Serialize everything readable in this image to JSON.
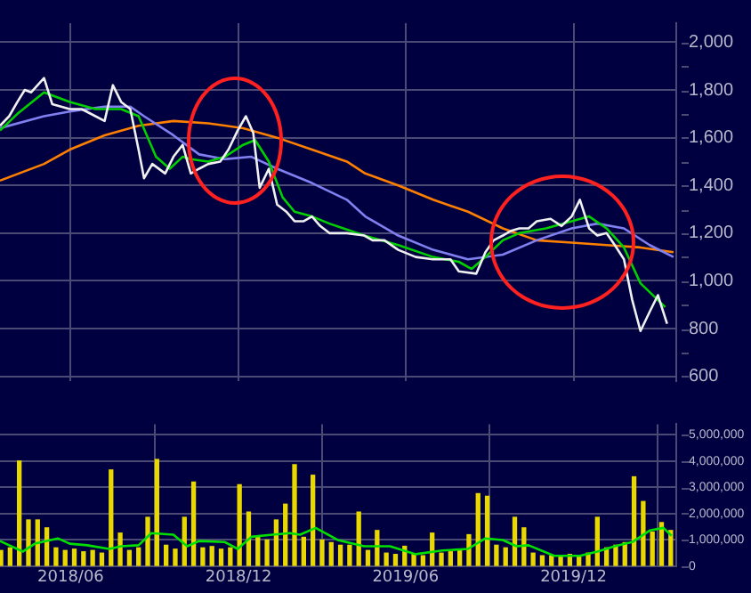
{
  "chart_data": [
    {
      "type": "line",
      "marker": "none",
      "line_style": "solid",
      "grid": true,
      "tick_labels": "y",
      "xlim": [
        "2018-03-16",
        "2020-03-22"
      ],
      "xticks": [
        {
          "value": "2018-06-01",
          "label": null
        },
        {
          "value": "2018-12-01",
          "label": null
        },
        {
          "value": "2019-06-01",
          "label": null
        },
        {
          "value": "2019-12-01",
          "label": null
        }
      ],
      "ylim": [
        580,
        2080
      ],
      "yticks": [
        {
          "value": 600,
          "label": "600"
        },
        {
          "value": 700,
          "label": null
        },
        {
          "value": 800,
          "label": "800"
        },
        {
          "value": 900,
          "label": null
        },
        {
          "value": 1000,
          "label": "1,000"
        },
        {
          "value": 1100,
          "label": null
        },
        {
          "value": 1200,
          "label": "1,200"
        },
        {
          "value": 1300,
          "label": null
        },
        {
          "value": 1400,
          "label": "1,400"
        },
        {
          "value": 1500,
          "label": null
        },
        {
          "value": 1600,
          "label": "1,600"
        },
        {
          "value": 1700,
          "label": null
        },
        {
          "value": 1800,
          "label": "1,800"
        },
        {
          "value": 1900,
          "label": null
        },
        {
          "value": 2000,
          "label": "2,000"
        }
      ],
      "series": [
        {
          "color": "#f0f0f0",
          "x": [
            "2018-03-16",
            "2018-03-26",
            "2018-04-04",
            "2018-04-12",
            "2018-04-19",
            "2018-05-03",
            "2018-05-12",
            "2018-05-31",
            "2018-06-13",
            "2018-06-28",
            "2018-07-08",
            "2018-07-17",
            "2018-07-26",
            "2018-08-05",
            "2018-08-14",
            "2018-08-20",
            "2018-08-29",
            "2018-09-12",
            "2018-09-21",
            "2018-10-01",
            "2018-10-10",
            "2018-10-19",
            "2018-10-29",
            "2018-11-11",
            "2018-11-20",
            "2018-11-30",
            "2018-12-09",
            "2018-12-17",
            "2018-12-24",
            "2019-01-03",
            "2019-01-12",
            "2019-01-22",
            "2019-01-31",
            "2019-02-10",
            "2019-02-19",
            "2019-02-28",
            "2019-03-10",
            "2019-03-29",
            "2019-04-17",
            "2019-04-26",
            "2019-05-09",
            "2019-05-24",
            "2019-06-12",
            "2019-07-01",
            "2019-07-20",
            "2019-07-29",
            "2019-08-17",
            "2019-08-27",
            "2019-09-05",
            "2019-09-15",
            "2019-09-24",
            "2019-10-03",
            "2019-10-13",
            "2019-10-22",
            "2019-11-06",
            "2019-11-18",
            "2019-11-29",
            "2019-12-08",
            "2019-12-18",
            "2019-12-27",
            "2020-01-06",
            "2020-01-15",
            "2020-01-25",
            "2020-02-03",
            "2020-02-12",
            "2020-02-22",
            "2020-03-02",
            "2020-03-12"
          ],
          "values": [
            1650,
            1690,
            1750,
            1800,
            1790,
            1850,
            1740,
            1720,
            1720,
            1690,
            1670,
            1820,
            1750,
            1720,
            1550,
            1430,
            1490,
            1450,
            1520,
            1570,
            1450,
            1470,
            1490,
            1500,
            1550,
            1630,
            1690,
            1620,
            1390,
            1470,
            1320,
            1290,
            1250,
            1250,
            1270,
            1230,
            1200,
            1200,
            1190,
            1170,
            1170,
            1130,
            1100,
            1090,
            1090,
            1040,
            1030,
            1120,
            1170,
            1190,
            1210,
            1220,
            1220,
            1250,
            1260,
            1230,
            1270,
            1340,
            1220,
            1190,
            1200,
            1150,
            1090,
            920,
            790,
            870,
            940,
            820
          ]
        },
        {
          "color": "#00d000",
          "x": [
            "2018-03-16",
            "2018-04-04",
            "2018-05-03",
            "2018-05-31",
            "2018-06-28",
            "2018-07-26",
            "2018-08-14",
            "2018-09-02",
            "2018-09-17",
            "2018-10-01",
            "2018-10-10",
            "2018-10-29",
            "2018-11-16",
            "2018-12-06",
            "2018-12-19",
            "2019-01-03",
            "2019-01-18",
            "2019-01-31",
            "2019-02-19",
            "2019-03-10",
            "2019-04-17",
            "2019-05-24",
            "2019-07-01",
            "2019-07-29",
            "2019-08-12",
            "2019-08-27",
            "2019-09-15",
            "2019-10-03",
            "2019-11-01",
            "2019-11-29",
            "2019-12-18",
            "2020-01-06",
            "2020-01-25",
            "2020-02-12",
            "2020-03-10"
          ],
          "values": [
            1630,
            1700,
            1790,
            1750,
            1720,
            1720,
            1690,
            1520,
            1470,
            1520,
            1510,
            1500,
            1520,
            1570,
            1590,
            1500,
            1350,
            1290,
            1270,
            1240,
            1190,
            1150,
            1100,
            1080,
            1050,
            1100,
            1170,
            1200,
            1220,
            1250,
            1270,
            1220,
            1140,
            990,
            890
          ]
        },
        {
          "color": "#8080f0",
          "x": [
            "2018-03-16",
            "2018-05-03",
            "2018-05-31",
            "2018-07-08",
            "2018-08-05",
            "2018-08-20",
            "2018-09-21",
            "2018-10-19",
            "2018-11-16",
            "2018-12-15",
            "2019-01-12",
            "2019-02-19",
            "2019-03-29",
            "2019-04-18",
            "2019-05-24",
            "2019-07-01",
            "2019-08-08",
            "2019-09-15",
            "2019-10-22",
            "2019-11-29",
            "2019-12-27",
            "2020-01-25",
            "2020-02-22",
            "2020-03-19"
          ],
          "values": [
            1640,
            1690,
            1710,
            1730,
            1730,
            1690,
            1610,
            1530,
            1510,
            1520,
            1470,
            1410,
            1340,
            1270,
            1190,
            1130,
            1090,
            1110,
            1170,
            1220,
            1240,
            1220,
            1150,
            1100
          ]
        },
        {
          "color": "#ff8000",
          "x": [
            "2018-03-16",
            "2018-05-03",
            "2018-05-31",
            "2018-07-08",
            "2018-08-14",
            "2018-09-21",
            "2018-10-29",
            "2018-12-06",
            "2019-01-12",
            "2019-02-19",
            "2019-03-29",
            "2019-04-18",
            "2019-05-24",
            "2019-07-01",
            "2019-08-08",
            "2019-09-15",
            "2019-10-22",
            "2019-11-29",
            "2020-01-06",
            "2020-02-12",
            "2020-03-19"
          ],
          "values": [
            1420,
            1490,
            1550,
            1610,
            1650,
            1670,
            1660,
            1640,
            1600,
            1550,
            1500,
            1450,
            1400,
            1340,
            1290,
            1220,
            1170,
            1160,
            1150,
            1140,
            1120
          ]
        }
      ]
    },
    {
      "type": "bar",
      "grid": true,
      "xlim": [
        "2018-03-16",
        "2020-03-22"
      ],
      "xticks": [
        {
          "value": "2018-06-01",
          "label": "2018/06"
        },
        {
          "value": "2018-12-01",
          "label": "2018/12"
        },
        {
          "value": "2019-06-01",
          "label": "2019/06"
        },
        {
          "value": "2019-12-01",
          "label": "2019/12"
        }
      ],
      "ylim": [
        0,
        5400000
      ],
      "yticks": [
        {
          "value": 0,
          "label": "0"
        },
        {
          "value": 1000000,
          "label": "1,000,000"
        },
        {
          "value": 2000000,
          "label": "2,000,000"
        },
        {
          "value": 3000000,
          "label": "3,000,000"
        },
        {
          "value": 4000000,
          "label": "4,000,000"
        },
        {
          "value": 5000000,
          "label": "5,000,000"
        }
      ],
      "series": [
        {
          "color": "#e8d800",
          "x": [
            "2018-03-17",
            "2018-03-27",
            "2018-04-06",
            "2018-04-16",
            "2018-04-26",
            "2018-05-06",
            "2018-05-16",
            "2018-05-26",
            "2018-06-05",
            "2018-06-15",
            "2018-06-25",
            "2018-07-05",
            "2018-07-15",
            "2018-07-25",
            "2018-08-04",
            "2018-08-14",
            "2018-08-24",
            "2018-09-03",
            "2018-09-13",
            "2018-09-23",
            "2018-10-03",
            "2018-10-13",
            "2018-10-23",
            "2018-11-02",
            "2018-11-12",
            "2018-11-22",
            "2018-12-02",
            "2018-12-12",
            "2018-12-22",
            "2019-01-01",
            "2019-01-11",
            "2019-01-21",
            "2019-01-31",
            "2019-02-10",
            "2019-02-20",
            "2019-03-02",
            "2019-03-12",
            "2019-03-22",
            "2019-04-01",
            "2019-04-11",
            "2019-04-21",
            "2019-05-01",
            "2019-05-11",
            "2019-05-21",
            "2019-05-31",
            "2019-06-10",
            "2019-06-20",
            "2019-06-30",
            "2019-07-10",
            "2019-07-20",
            "2019-07-30",
            "2019-08-09",
            "2019-08-19",
            "2019-08-29",
            "2019-09-08",
            "2019-09-18",
            "2019-09-28",
            "2019-10-08",
            "2019-10-18",
            "2019-10-28",
            "2019-11-07",
            "2019-11-17",
            "2019-11-27",
            "2019-12-07",
            "2019-12-17",
            "2019-12-27",
            "2020-01-06",
            "2020-01-16",
            "2020-01-26",
            "2020-02-05",
            "2020-02-15",
            "2020-02-25",
            "2020-03-06",
            "2020-03-16"
          ],
          "values": [
            600000,
            700000,
            4000000,
            1760000,
            1760000,
            1460000,
            700000,
            600000,
            650000,
            550000,
            600000,
            500000,
            3660000,
            1260000,
            600000,
            700000,
            1860000,
            4060000,
            800000,
            650000,
            1860000,
            3200000,
            700000,
            750000,
            650000,
            700000,
            3100000,
            2060000,
            1100000,
            1000000,
            1760000,
            2360000,
            3860000,
            1100000,
            3460000,
            1000000,
            900000,
            800000,
            800000,
            2060000,
            600000,
            1360000,
            500000,
            450000,
            760000,
            450000,
            400000,
            1260000,
            500000,
            550000,
            600000,
            1200000,
            2760000,
            2660000,
            800000,
            700000,
            1860000,
            1460000,
            500000,
            400000,
            400000,
            350000,
            450000,
            400000,
            500000,
            1860000,
            700000,
            800000,
            900000,
            3400000,
            2460000,
            1300000,
            1660000,
            1360000
          ]
        },
        {
          "type": "line",
          "color": "#00e000",
          "x": [
            "2018-03-16",
            "2018-04-10",
            "2018-04-23",
            "2018-05-18",
            "2018-05-31",
            "2018-06-19",
            "2018-07-13",
            "2018-07-26",
            "2018-08-14",
            "2018-08-28",
            "2018-09-21",
            "2018-10-06",
            "2018-10-19",
            "2018-11-16",
            "2018-11-30",
            "2018-12-15",
            "2019-01-07",
            "2019-01-26",
            "2019-02-06",
            "2019-02-23",
            "2019-03-19",
            "2019-04-17",
            "2019-05-15",
            "2019-06-12",
            "2019-07-11",
            "2019-08-08",
            "2019-08-27",
            "2019-09-15",
            "2019-09-30",
            "2019-10-13",
            "2019-11-10",
            "2019-12-08",
            "2019-12-27",
            "2020-01-15",
            "2020-02-03",
            "2020-02-22",
            "2020-03-08",
            "2020-03-17"
          ],
          "values": [
            960000,
            560000,
            860000,
            1060000,
            860000,
            800000,
            660000,
            760000,
            800000,
            1260000,
            1200000,
            760000,
            960000,
            920000,
            660000,
            1120000,
            1200000,
            1260000,
            1200000,
            1460000,
            1000000,
            760000,
            760000,
            460000,
            600000,
            660000,
            1060000,
            1000000,
            760000,
            800000,
            400000,
            400000,
            560000,
            760000,
            920000,
            1360000,
            1460000,
            1160000
          ]
        }
      ]
    }
  ]
}
